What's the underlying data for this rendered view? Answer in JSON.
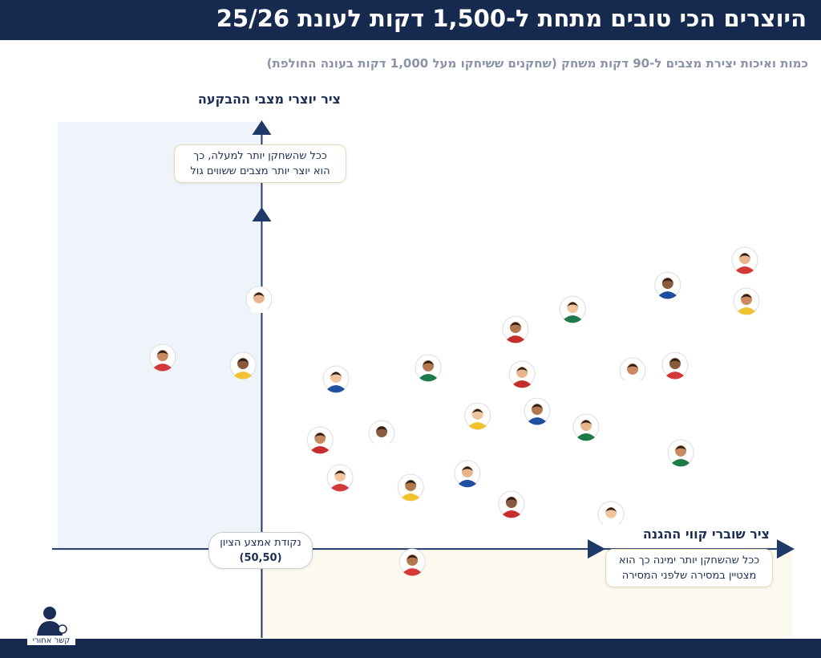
{
  "chart_data": {
    "type": "scatter",
    "title": "היוצרים הכי טובים מתחת ל-1,500 דקות לעונת 25/26",
    "subtitle": "כמות ואיכות יצירת מצבים ל-90 דקות משחק (שחקנים ששיחקו מעל 1,000 דקות בעונה החולפת)",
    "y_label": "ציר יוצרי מצבי ההבקעה",
    "y_note": [
      "ככל שהשחקן יותר למעלה, כך",
      "הוא יוצר יותר מצבים ששווים גול"
    ],
    "x_label": "ציר שוברי קווי ההגנה",
    "x_note": [
      "ככל שהשחקן יותר ימינה כך הוא",
      "מצטיין במסירה שלפני המסירה"
    ],
    "center": {
      "x": 50,
      "y": 50,
      "label": "נקודת אמצע הציון",
      "text": "(50,50)"
    },
    "xlim": [
      0,
      180
    ],
    "ylim": [
      0,
      290
    ],
    "x": [
      168.4,
      168.8,
      149.5,
      126.2,
      112.2,
      49.3,
      25.7,
      45.4,
      68.2,
      90.8,
      113.8,
      140.9,
      151.3,
      102.9,
      117.5,
      129.5,
      64.3,
      79.4,
      69.2,
      86.5,
      100.4,
      152.7,
      111.2,
      135.6,
      86.9
    ],
    "y": [
      212.4,
      189.4,
      198.4,
      184.9,
      173.6,
      190.3,
      157.8,
      153.3,
      145.7,
      152.0,
      148.4,
      150.2,
      153.3,
      124.9,
      127.6,
      118.6,
      111.4,
      115.0,
      90.2,
      84.8,
      92.5,
      104.2,
      75.3,
      69.5,
      42.8
    ]
  },
  "logo": "קשר אחורי"
}
